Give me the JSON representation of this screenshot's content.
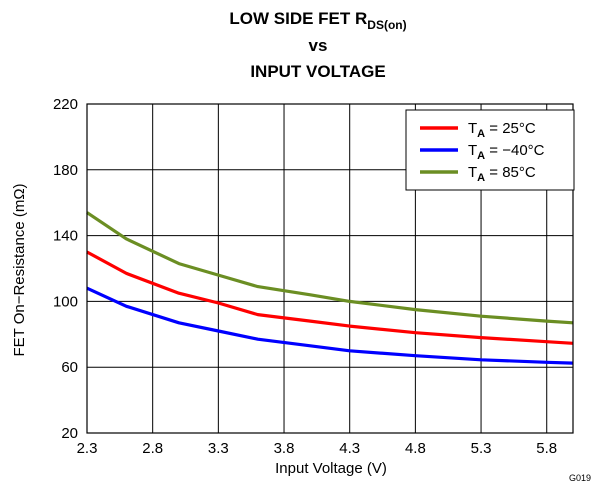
{
  "chart_data": {
    "type": "line",
    "title": {
      "line1_main": "LOW SIDE FET R",
      "line1_sub": "DS(on)",
      "line2": "vs",
      "line3": "INPUT VOLTAGE"
    },
    "xlabel": "Input Voltage (V)",
    "ylabel": "FET On−Resistance (mΩ)",
    "xlim": [
      2.3,
      6.0
    ],
    "ylim": [
      20,
      220
    ],
    "xticks": [
      "2.3",
      "2.8",
      "3.3",
      "3.8",
      "4.3",
      "4.8",
      "5.3",
      "5.8"
    ],
    "yticks": [
      "20",
      "60",
      "100",
      "140",
      "180",
      "220"
    ],
    "grid": true,
    "legend_position": "top-right",
    "figure_id": "G019",
    "series": [
      {
        "name_main": "T",
        "name_sub": "A",
        "name_rest": " = 25°C",
        "color": "#ff0000",
        "x": [
          2.3,
          2.6,
          3.0,
          3.3,
          3.6,
          4.0,
          4.3,
          4.8,
          5.3,
          5.8,
          6.0
        ],
        "y": [
          130,
          117,
          105,
          99,
          92,
          88,
          85,
          81,
          78,
          75.5,
          74.5
        ]
      },
      {
        "name_main": "T",
        "name_sub": "A",
        "name_rest": " = −40°C",
        "color": "#0000ff",
        "x": [
          2.3,
          2.6,
          3.0,
          3.3,
          3.6,
          4.0,
          4.3,
          4.8,
          5.3,
          5.8,
          6.0
        ],
        "y": [
          108,
          97,
          87,
          82,
          77,
          73,
          70,
          67,
          64.5,
          63,
          62.5
        ]
      },
      {
        "name_main": "T",
        "name_sub": "A",
        "name_rest": " = 85°C",
        "color": "#6b8e23",
        "x": [
          2.3,
          2.6,
          3.0,
          3.3,
          3.6,
          4.0,
          4.3,
          4.8,
          5.3,
          5.8,
          6.0
        ],
        "y": [
          154,
          138,
          123,
          116,
          109,
          104,
          100,
          95,
          91,
          88,
          87
        ]
      }
    ]
  }
}
